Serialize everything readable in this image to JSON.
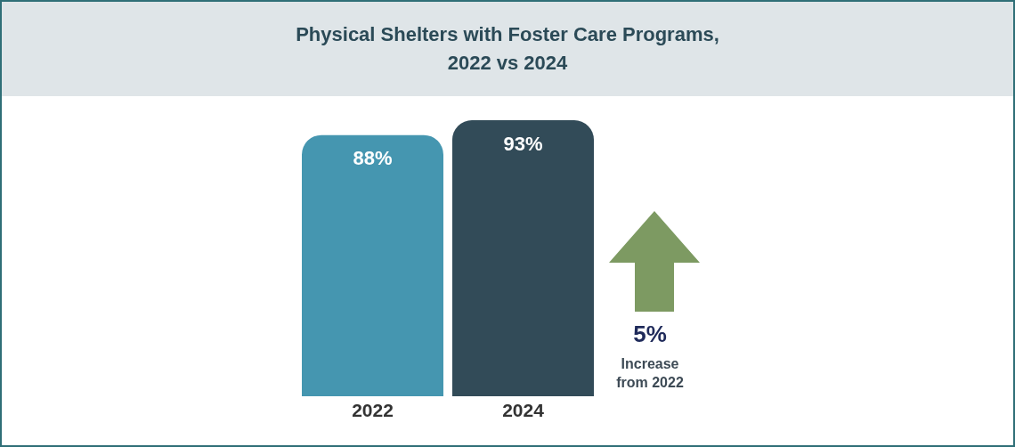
{
  "chart_data": {
    "type": "bar",
    "title": "Physical Shelters with Foster Care Programs, 2022 vs 2024",
    "categories": [
      "2022",
      "2024"
    ],
    "values": [
      88,
      93
    ],
    "colors": [
      "#4596b0",
      "#324b58"
    ],
    "value_labels": [
      "88%",
      "93%"
    ],
    "annotations": [
      "5%",
      "Increase from 2022"
    ]
  }
}
